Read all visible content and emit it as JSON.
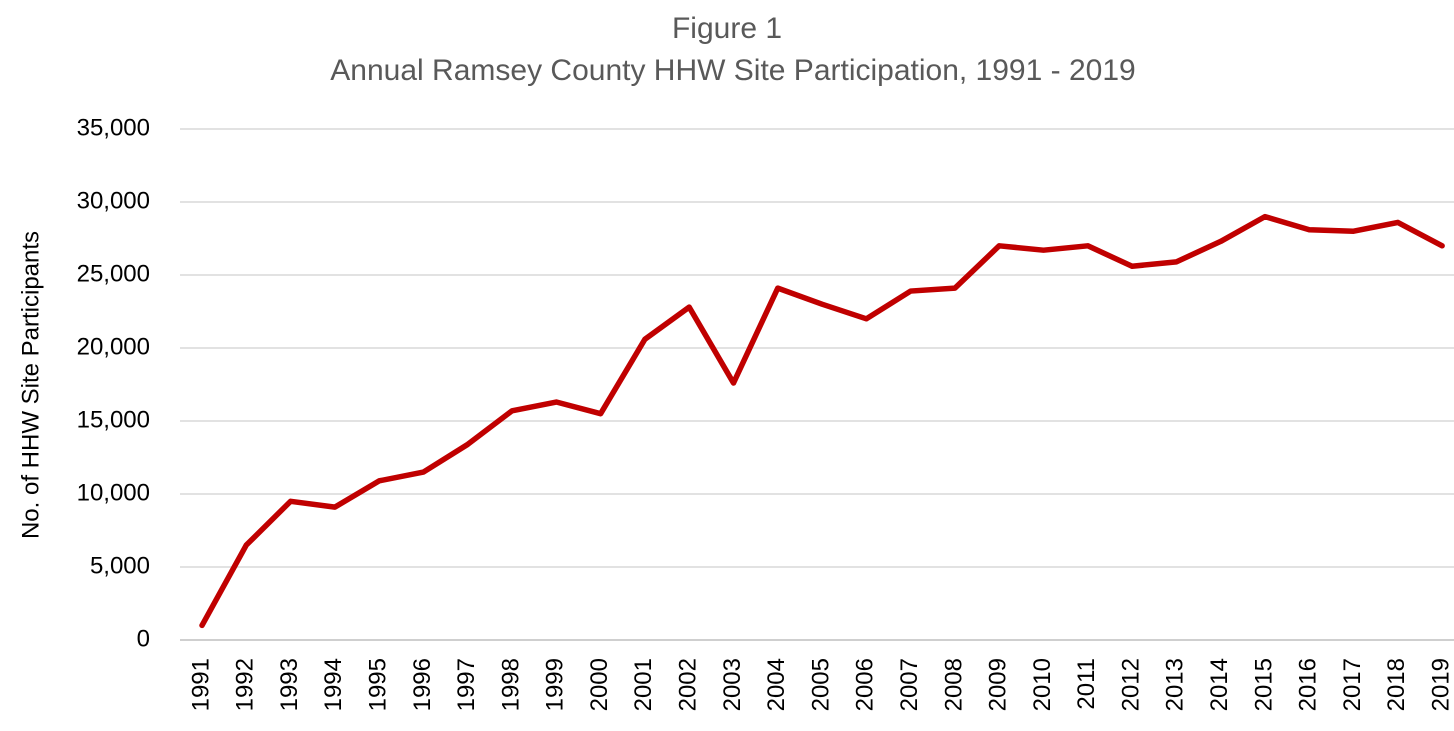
{
  "chart_data": {
    "type": "line",
    "title": "Figure 1",
    "subtitle": "Annual Ramsey County HHW Site Participation, 1991 - 2019",
    "y_label": "No. of HHW Site Participants",
    "categories": [
      "1991",
      "1992",
      "1993",
      "1994",
      "1995",
      "1996",
      "1997",
      "1998",
      "1999",
      "2000",
      "2001",
      "2002",
      "2003",
      "2004",
      "2005",
      "2006",
      "2007",
      "2008",
      "2009",
      "2010",
      "2011",
      "2012",
      "2013",
      "2014",
      "2015",
      "2016",
      "2017",
      "2018",
      "2019"
    ],
    "series": [
      {
        "name": "HHW Site Participants",
        "color": "#c00000",
        "values": [
          1000,
          6500,
          9500,
          9100,
          10900,
          11500,
          13400,
          15700,
          16300,
          15500,
          20600,
          22800,
          17600,
          24100,
          23000,
          22000,
          23900,
          24100,
          27000,
          26700,
          27000,
          25600,
          25900,
          27300,
          29000,
          28100,
          28000,
          28600,
          27000
        ]
      }
    ],
    "ylim": [
      0,
      35000
    ],
    "yticks": [
      0,
      {
        "value": 5000,
        "label": "5,000"
      },
      {
        "value": 10000,
        "label": "10,000"
      },
      {
        "value": 15000,
        "label": "15,000"
      },
      {
        "value": 20000,
        "label": "20,000"
      },
      {
        "value": 25000,
        "label": "25,000"
      },
      {
        "value": 30000,
        "label": "30,000"
      },
      {
        "value": 35000,
        "label": "35,000"
      }
    ],
    "grid": true
  }
}
